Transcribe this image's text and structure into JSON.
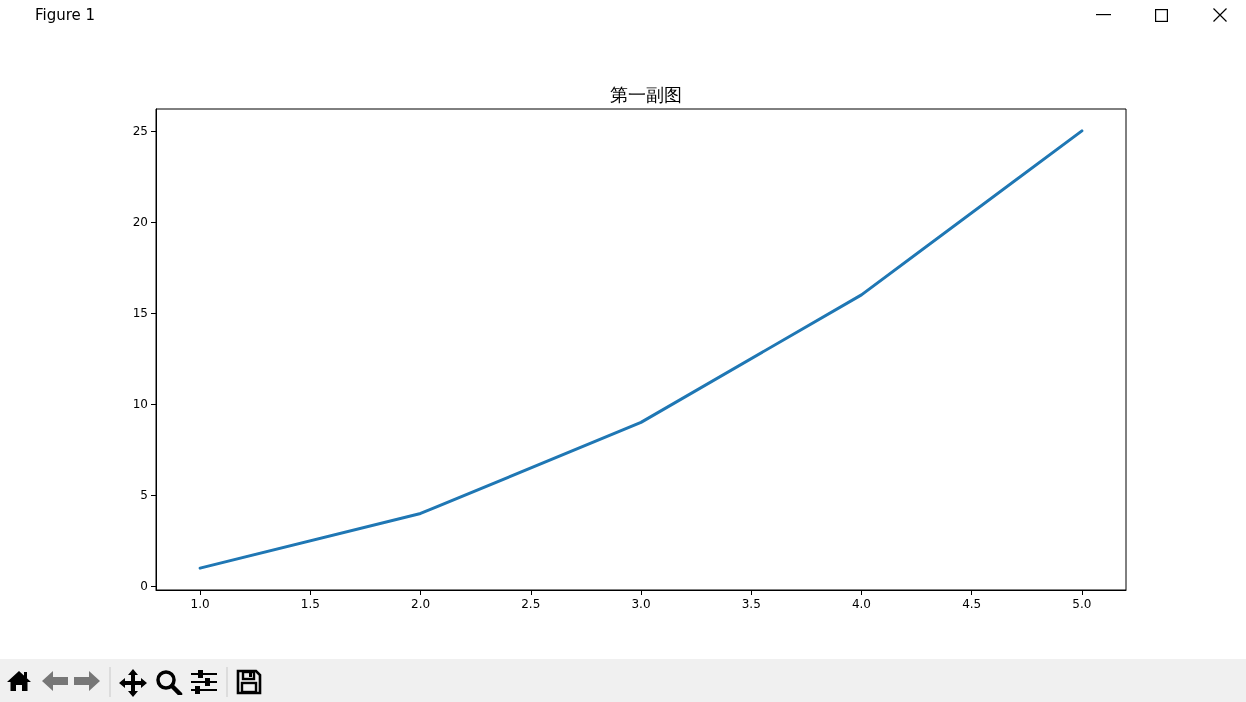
{
  "chart_data": {
    "type": "line",
    "title": "第一副图",
    "x": [
      1,
      2,
      3,
      4,
      5
    ],
    "values": [
      1,
      4,
      9,
      16,
      25
    ],
    "color": "#1f77b4",
    "xlim": [
      0.8,
      5.2
    ],
    "xticks": [
      {
        "value": 1,
        "label": "1.0"
      },
      {
        "value": 1.5,
        "label": "1.5"
      },
      {
        "value": 2,
        "label": "2.0"
      },
      {
        "value": 2.5,
        "label": "2.5"
      },
      {
        "value": 3,
        "label": "3.0"
      },
      {
        "value": 3.5,
        "label": "3.5"
      },
      {
        "value": 4,
        "label": "4.0"
      },
      {
        "value": 4.5,
        "label": "4.5"
      },
      {
        "value": 5,
        "label": "5.0"
      }
    ],
    "ylim": [
      -0.2,
      26.2
    ],
    "yticks": [
      0,
      5,
      10,
      15,
      20,
      25
    ],
    "line_style": "solid",
    "annotations": [
      "Figure 1"
    ]
  }
}
